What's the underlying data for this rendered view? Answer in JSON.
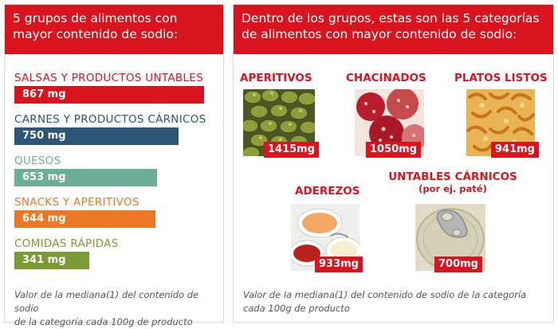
{
  "left_panel": {
    "title_line1": "5 grupos de alimentos con",
    "title_line2": "mayor contenido de sodio:",
    "footnote_line1": "Valor de la mediana(1) del contenido de sodio",
    "footnote_line2": "de la categoría cada 100g de producto"
  },
  "right_panel": {
    "title_line1": "Dentro de los grupos, estas son las 5 categorías",
    "title_line2": "de alimentos con mayor contenido de sodio:",
    "footnote_line1": "Valor de la mediana(1) del contenido de sodio de la categoría",
    "footnote_line2": "cada 100g de producto",
    "foods": [
      {
        "name": "APERITIVOS",
        "sub": "",
        "label": "1415mg",
        "icon": "olives-photo"
      },
      {
        "name": "CHACINADOS",
        "sub": "",
        "label": "1050mg",
        "icon": "cold-cuts-photo"
      },
      {
        "name": "PLATOS LISTOS",
        "sub": "",
        "label": "941mg",
        "icon": "pasta-photo"
      },
      {
        "name": "ADEREZOS",
        "sub": "",
        "label": "933mg",
        "icon": "sauces-photo"
      },
      {
        "name": "UNTABLES CÁRNICOS",
        "sub": "(por ej. paté)",
        "label": "700mg",
        "icon": "tin-can-photo"
      }
    ]
  },
  "chart_data": [
    {
      "type": "bar",
      "orientation": "horizontal",
      "categories": [
        "SALSAS Y PRODUCTOS UNTABLES",
        "CARNES Y PRODUCTOS CÁRNICOS",
        "QUESOS",
        "SNACKS Y APERITIVOS",
        "COMIDAS RÁPIDAS"
      ],
      "values": [
        867,
        750,
        653,
        644,
        341
      ],
      "value_labels": [
        "867 mg",
        "750 mg",
        "653 mg",
        "644 mg",
        "341 mg"
      ],
      "colors": [
        "#d9141f",
        "#2d5577",
        "#6daf96",
        "#ec7824",
        "#7c9a34"
      ],
      "xlim": [
        0,
        867
      ],
      "grid": false
    },
    {
      "type": "bar",
      "categories": [
        "APERITIVOS",
        "CHACINADOS",
        "PLATOS LISTOS",
        "ADEREZOS",
        "UNTABLES CÁRNICOS"
      ],
      "values": [
        1415,
        1050,
        941,
        933,
        700
      ],
      "value_labels": [
        "1415mg",
        "1050mg",
        "941mg",
        "933mg",
        "700mg"
      ]
    }
  ],
  "colors": {
    "accent": "#d9141f",
    "footnote": "#555555"
  }
}
